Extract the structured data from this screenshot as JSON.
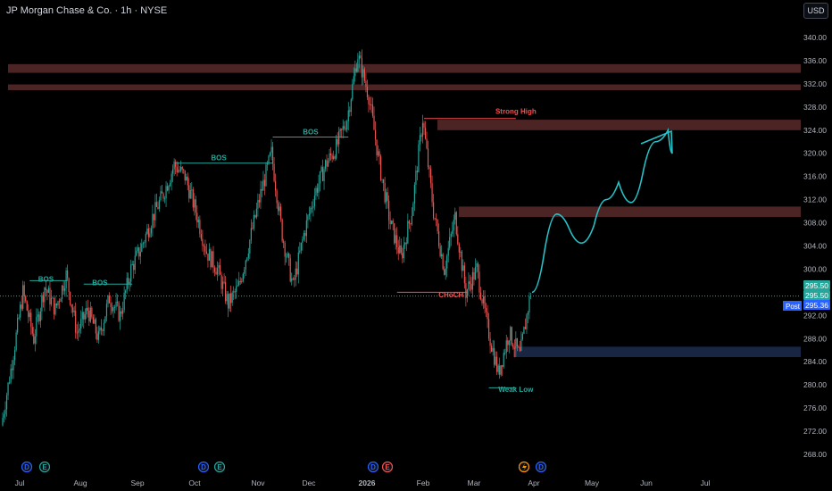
{
  "header": {
    "title": "JP Morgan Chase & Co. · 1h · NYSE",
    "currency": "USD"
  },
  "colors": {
    "bg": "#000000",
    "up": "#26a69a",
    "down": "#ef5350",
    "supply_zone": "#5a2a2a",
    "demand_zone": "#1b2a4a",
    "projection": "#27c1c8",
    "price_line": "#26a69a",
    "post_tag": "#2962ff"
  },
  "chart_data": {
    "type": "candlestick",
    "symbol": "JP Morgan Chase & Co.",
    "interval": "1h",
    "exchange": "NYSE",
    "y_range": [
      266.4,
      343.0
    ],
    "y_ticks": [
      "340.00",
      "336.00",
      "332.00",
      "328.00",
      "324.00",
      "320.00",
      "316.00",
      "312.00",
      "308.00",
      "304.00",
      "300.00",
      "296.00",
      "292.00",
      "288.00",
      "284.00",
      "280.00",
      "276.00",
      "272.00",
      "268.00"
    ],
    "x_ticks": [
      "Jul",
      "Aug",
      "Sep",
      "Oct",
      "Nov",
      "Dec",
      "2026",
      "Feb",
      "Mar",
      "Apr",
      "May",
      "Jun",
      "Jul"
    ],
    "path": [
      {
        "t": 0,
        "p": 273
      },
      {
        "t": 2,
        "p": 284
      },
      {
        "t": 4,
        "p": 296
      },
      {
        "t": 6,
        "p": 288
      },
      {
        "t": 8,
        "p": 297
      },
      {
        "t": 10,
        "p": 293
      },
      {
        "t": 12,
        "p": 299
      },
      {
        "t": 14,
        "p": 289
      },
      {
        "t": 16,
        "p": 293
      },
      {
        "t": 18,
        "p": 288
      },
      {
        "t": 20,
        "p": 295
      },
      {
        "t": 22,
        "p": 292
      },
      {
        "t": 24,
        "p": 300
      },
      {
        "t": 26,
        "p": 304
      },
      {
        "t": 28,
        "p": 309
      },
      {
        "t": 30,
        "p": 313
      },
      {
        "t": 32,
        "p": 318
      },
      {
        "t": 34,
        "p": 316
      },
      {
        "t": 36,
        "p": 310
      },
      {
        "t": 38,
        "p": 303
      },
      {
        "t": 40,
        "p": 300
      },
      {
        "t": 42,
        "p": 294
      },
      {
        "t": 44,
        "p": 297
      },
      {
        "t": 46,
        "p": 305
      },
      {
        "t": 48,
        "p": 313
      },
      {
        "t": 50,
        "p": 320
      },
      {
        "t": 52,
        "p": 306
      },
      {
        "t": 54,
        "p": 297
      },
      {
        "t": 56,
        "p": 306
      },
      {
        "t": 58,
        "p": 313
      },
      {
        "t": 60,
        "p": 318
      },
      {
        "t": 62,
        "p": 321
      },
      {
        "t": 64,
        "p": 326
      },
      {
        "t": 66,
        "p": 337
      },
      {
        "t": 68,
        "p": 330
      },
      {
        "t": 70,
        "p": 318
      },
      {
        "t": 72,
        "p": 308
      },
      {
        "t": 74,
        "p": 302
      },
      {
        "t": 76,
        "p": 310
      },
      {
        "t": 78,
        "p": 326
      },
      {
        "t": 80,
        "p": 310
      },
      {
        "t": 82,
        "p": 300
      },
      {
        "t": 84,
        "p": 309
      },
      {
        "t": 86,
        "p": 296
      },
      {
        "t": 88,
        "p": 300
      },
      {
        "t": 90,
        "p": 290
      },
      {
        "t": 92,
        "p": 282
      },
      {
        "t": 94,
        "p": 289
      },
      {
        "t": 96,
        "p": 285
      },
      {
        "t": 98,
        "p": 296
      }
    ],
    "last_price": "295.50",
    "post_price": "295.36",
    "post_label": "Post",
    "supply_zones": [
      {
        "x0": "Jan",
        "x1": "edge",
        "top": 335.4,
        "bottom": 333.9
      },
      {
        "x0": "Jan",
        "x1": "edge",
        "top": 331.9,
        "bottom": 330.9
      },
      {
        "x0": "Feb",
        "x1": "edge",
        "top": 325.8,
        "bottom": 324.0
      },
      {
        "x0": "Feb",
        "x1": "edge",
        "top": 310.8,
        "bottom": 309.0
      }
    ],
    "demand_zones": [
      {
        "x0": "Mar",
        "x1": "edge",
        "top": 286.6,
        "bottom": 284.8
      }
    ],
    "projection_path": [
      {
        "t": 98,
        "p": 296
      },
      {
        "t": 101,
        "p": 303
      },
      {
        "t": 104,
        "p": 309.5
      },
      {
        "t": 107,
        "p": 307
      },
      {
        "t": 110,
        "p": 304.5
      },
      {
        "t": 113,
        "p": 307.5
      },
      {
        "t": 116,
        "p": 312
      },
      {
        "t": 119,
        "p": 315
      },
      {
        "t": 122,
        "p": 311.5
      },
      {
        "t": 125,
        "p": 317
      },
      {
        "t": 128,
        "p": 322
      },
      {
        "t": 131,
        "p": 324
      },
      {
        "t": 132,
        "p": 320
      }
    ],
    "annotations": [
      {
        "text": "BOS",
        "t": 8,
        "p": 297.8,
        "color": "up"
      },
      {
        "text": "BOS",
        "t": 18,
        "p": 297.2,
        "color": "up"
      },
      {
        "text": "BOS",
        "t": 40,
        "p": 318.8,
        "color": "up"
      },
      {
        "text": "BOS",
        "t": 57,
        "p": 323.3,
        "color": "up"
      },
      {
        "text": "CHoCH",
        "t": 83,
        "p": 295.1,
        "color": "down"
      },
      {
        "text": "Strong High",
        "t": 95,
        "p": 326.8,
        "color": "down"
      },
      {
        "text": "Weak Low",
        "t": 95,
        "p": 278.8,
        "color": "up"
      }
    ],
    "structure_lines": [
      {
        "t0": 5,
        "t1": 12,
        "p": 298,
        "color": "up"
      },
      {
        "t0": 15,
        "t1": 24,
        "p": 297.4,
        "color": "up"
      },
      {
        "t0": 32,
        "t1": 50,
        "p": 318.3,
        "color": "up"
      },
      {
        "t0": 50,
        "t1": 64,
        "p": 322.8,
        "color": "up"
      },
      {
        "t0": 73,
        "t1": 86,
        "p": 296,
        "color": "down"
      },
      {
        "t0": 78,
        "t1": 95,
        "p": 326,
        "color": "down"
      },
      {
        "t0": 90,
        "t1": 95,
        "p": 279.5,
        "color": "up"
      }
    ],
    "bottom_markers": [
      {
        "letter": "D",
        "t": 3,
        "color": "#2962ff"
      },
      {
        "letter": "E",
        "t": 5,
        "color": "#26a69a"
      },
      {
        "letter": "D",
        "t": 35,
        "color": "#2962ff"
      },
      {
        "letter": "E",
        "t": 38,
        "color": "#26a69a"
      },
      {
        "letter": "D",
        "t": 67,
        "color": "#2962ff"
      },
      {
        "letter": "E",
        "t": 70,
        "color": "#ef5350"
      },
      {
        "letter": "D",
        "t": 100,
        "color": "#2962ff"
      }
    ]
  }
}
